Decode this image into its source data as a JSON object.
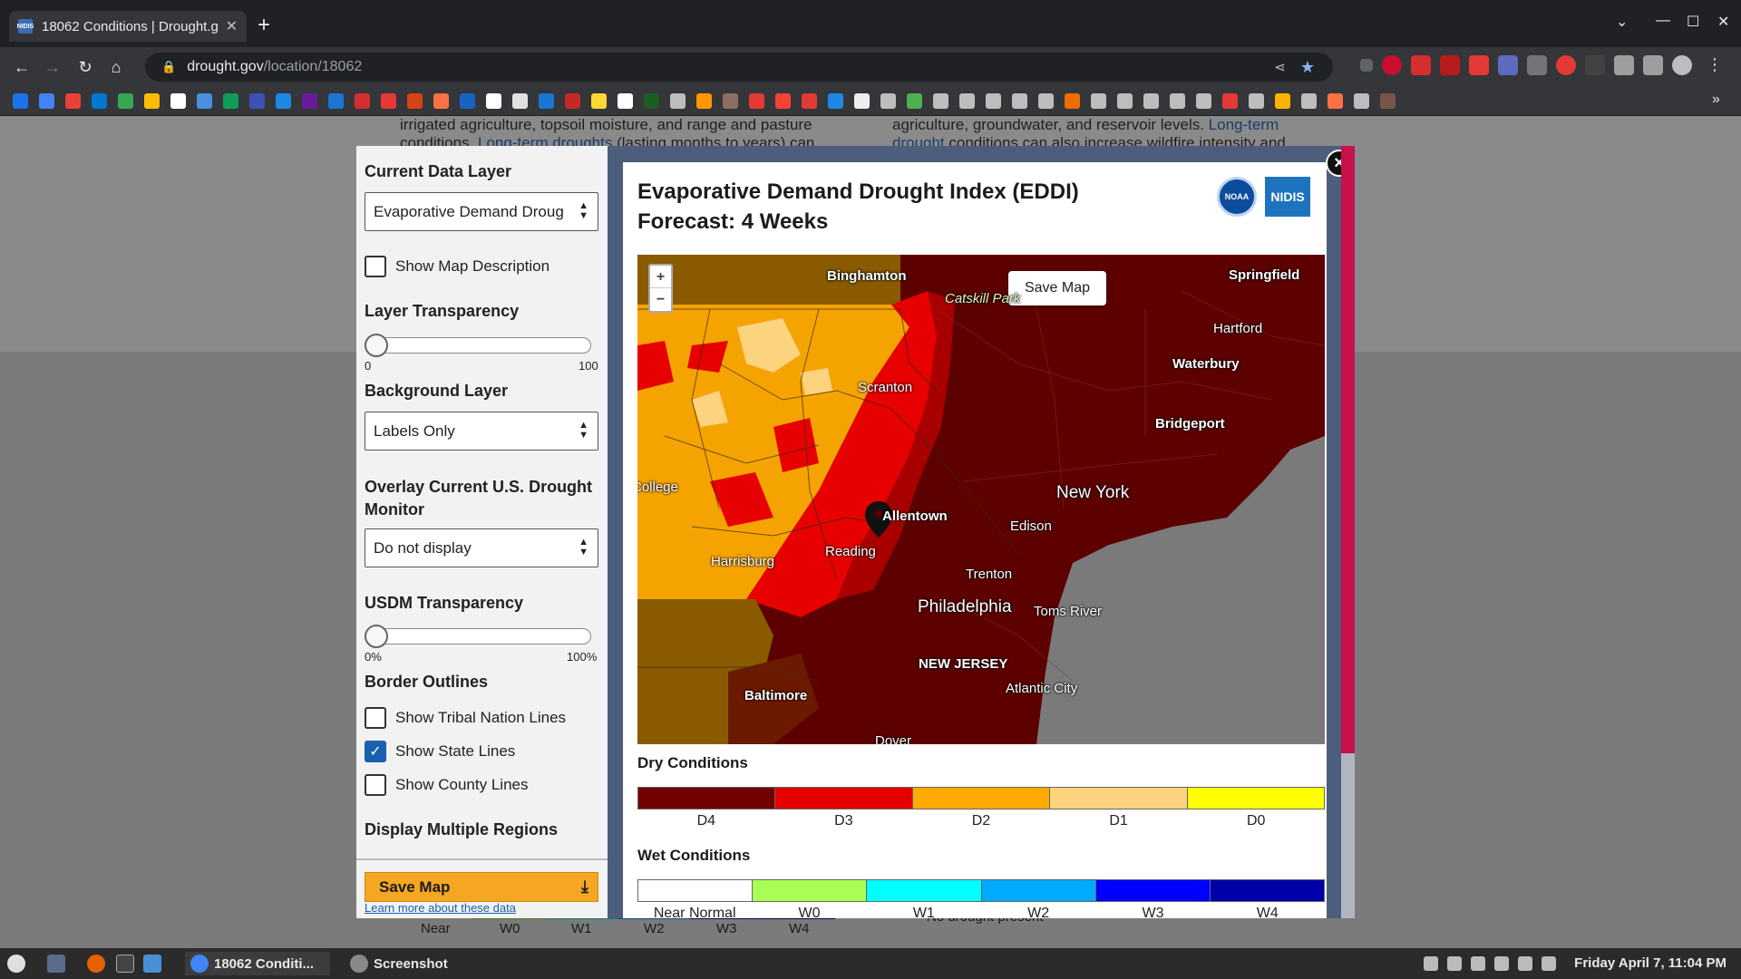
{
  "browser": {
    "tab_title": "18062 Conditions | Drought.g",
    "favicon_text": "NIDIS",
    "url_host": "drought.gov",
    "url_path": "/location/18062"
  },
  "background_page": {
    "left_text_line1": "irrigated agriculture, topsoil moisture, and range and pasture",
    "left_text_line2a": "conditions. ",
    "left_text_link": "Long-term droughts",
    "left_text_line2b": " (lasting months to years) can",
    "right_text_line1a": "agriculture, groundwater, and reservoir levels. ",
    "right_text_link1": "Long-term",
    "right_text_line2a": "drought",
    "right_text_line2b": " conditions can also increase wildfire intensity and",
    "legend_labels": [
      "Near",
      "W0",
      "W1",
      "W2",
      "W3",
      "W4"
    ],
    "right_legend": "No drought present"
  },
  "sidebar": {
    "current_data_layer_label": "Current Data Layer",
    "current_data_layer_value": "Evaporative Demand Droug",
    "show_map_description": "Show Map Description",
    "layer_transparency_label": "Layer Transparency",
    "layer_transparency_min": "0",
    "layer_transparency_max": "100",
    "layer_transparency_value": 0,
    "background_layer_label": "Background Layer",
    "background_layer_value": "Labels Only",
    "overlay_label": "Overlay Current U.S. Drought Monitor",
    "overlay_value": "Do not display",
    "usdm_transparency_label": "USDM Transparency",
    "usdm_min": "0%",
    "usdm_max": "100%",
    "usdm_value": 0,
    "border_outlines_label": "Border Outlines",
    "tribal_lines": "Show Tribal Nation Lines",
    "tribal_checked": false,
    "state_lines": "Show State Lines",
    "state_checked": true,
    "county_lines": "Show County Lines",
    "county_checked": false,
    "display_multiple_label": "Display Multiple Regions",
    "save_map": "Save Map",
    "learn_more": "Learn more about these data"
  },
  "main": {
    "title": "Evaporative Demand Drought Index (EDDI) Forecast: 4 Weeks",
    "noaa_logo": "NOAA",
    "nidis_logo": "NIDIS",
    "close_icon": "×",
    "save_map_button": "Save Map",
    "zoom_in": "+",
    "zoom_out": "−",
    "cities": {
      "binghamton": "Binghamton",
      "springfield": "Springfield",
      "catskill": "Catskill Park",
      "hartford": "Hartford",
      "waterbury": "Waterbury",
      "scranton": "Scranton",
      "bridgeport": "Bridgeport",
      "college": "College",
      "new_york": "New York",
      "allentown": "Allentown",
      "edison": "Edison",
      "reading": "Reading",
      "harrisburg": "Harrisburg",
      "trenton": "Trenton",
      "philadelphia": "Philadelphia",
      "toms_river": "Toms River",
      "new_jersey": "NEW JERSEY",
      "baltimore": "Baltimore",
      "atlantic_city": "Atlantic City",
      "dover": "Dover"
    },
    "dry_title": "Dry Conditions",
    "dry_legend": [
      {
        "label": "D4",
        "color": "#730000"
      },
      {
        "label": "D3",
        "color": "#e60000"
      },
      {
        "label": "D2",
        "color": "#ffaa00"
      },
      {
        "label": "D1",
        "color": "#fcd37f"
      },
      {
        "label": "D0",
        "color": "#ffff00"
      }
    ],
    "wet_title": "Wet Conditions",
    "wet_legend": [
      {
        "label": "Near Normal",
        "color": "#ffffff"
      },
      {
        "label": "W0",
        "color": "#aaff55"
      },
      {
        "label": "W1",
        "color": "#01ffff"
      },
      {
        "label": "W2",
        "color": "#00aaff"
      },
      {
        "label": "W3",
        "color": "#0000ff"
      },
      {
        "label": "W4",
        "color": "#0000aa"
      }
    ]
  },
  "taskbar": {
    "chrome_item": "18062 Conditi...",
    "screenshot_item": "Screenshot",
    "clock": "Friday April  7, 11:04 PM"
  }
}
